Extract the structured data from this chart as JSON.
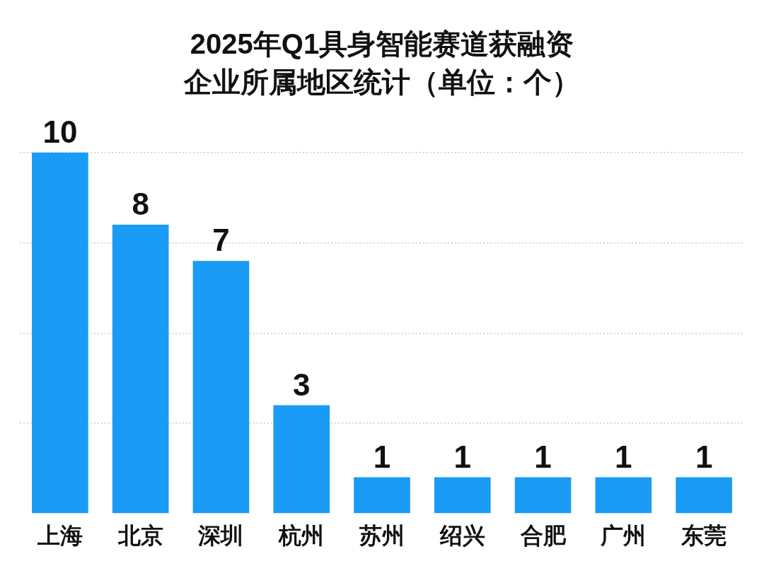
{
  "chart_data": {
    "type": "bar",
    "title": "2025年Q1具身智能赛道获融资",
    "subtitle": "企业所属地区统计（单位：个）",
    "categories": [
      "上海",
      "北京",
      "深圳",
      "杭州",
      "苏州",
      "绍兴",
      "合肥",
      "广州",
      "东莞"
    ],
    "values": [
      10,
      8,
      7,
      3,
      1,
      1,
      1,
      1,
      1
    ],
    "color": "#1a9bf5",
    "yticks": [
      {
        "value": 2.5,
        "label": null
      },
      {
        "value": 5,
        "label": null
      },
      {
        "value": 7.5,
        "label": null
      },
      {
        "value": 10,
        "label": null
      }
    ],
    "grid": "y",
    "tick_labels": "x",
    "data_labels": true
  }
}
